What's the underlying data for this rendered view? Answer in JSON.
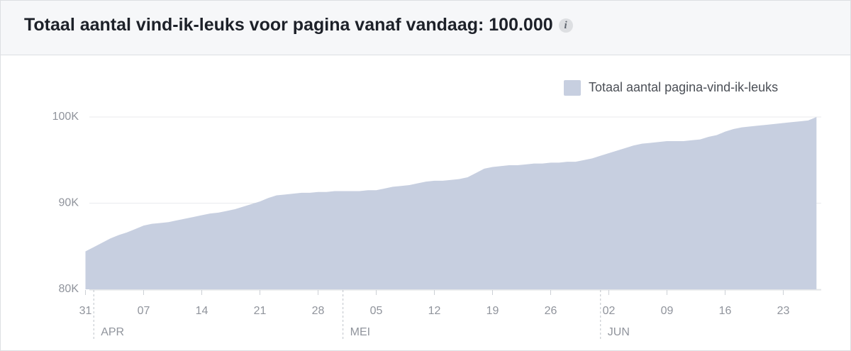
{
  "header": {
    "title": "Totaal aantal vind-ik-leuks voor pagina vanaf vandaag: 100.000",
    "info_icon": "i"
  },
  "chart_data": {
    "type": "area",
    "categories": [
      "31",
      null,
      null,
      null,
      null,
      null,
      null,
      "07",
      null,
      null,
      null,
      null,
      null,
      null,
      "14",
      null,
      null,
      null,
      null,
      null,
      null,
      "21",
      null,
      null,
      null,
      null,
      null,
      null,
      "28",
      null,
      null,
      null,
      null,
      null,
      null,
      "05",
      null,
      null,
      null,
      null,
      null,
      null,
      "12",
      null,
      null,
      null,
      null,
      null,
      null,
      "19",
      null,
      null,
      null,
      null,
      null,
      null,
      "26",
      null,
      null,
      null,
      null,
      null,
      null,
      "02",
      null,
      null,
      null,
      null,
      null,
      null,
      "09",
      null,
      null,
      null,
      null,
      null,
      null,
      "16",
      null,
      null,
      null,
      null,
      null,
      null,
      "23",
      null,
      null,
      null,
      null
    ],
    "month_labels": [
      null,
      "APR",
      null,
      null,
      null,
      null,
      null,
      null,
      null,
      null,
      null,
      null,
      null,
      null,
      null,
      null,
      null,
      null,
      null,
      null,
      null,
      null,
      null,
      null,
      null,
      null,
      null,
      null,
      null,
      null,
      null,
      "MEI",
      null,
      null,
      null,
      null,
      null,
      null,
      null,
      null,
      null,
      null,
      null,
      null,
      null,
      null,
      null,
      null,
      null,
      null,
      null,
      null,
      null,
      null,
      null,
      null,
      null,
      null,
      null,
      null,
      null,
      null,
      "JUN",
      null,
      null,
      null,
      null,
      null,
      null,
      null,
      null,
      null,
      null,
      null,
      null,
      null,
      null,
      null,
      null,
      null,
      null,
      null,
      null,
      null,
      null,
      null,
      null,
      null,
      null
    ],
    "series": [
      {
        "name": "Totaal aantal pagina-vind-ik-leuks",
        "color": "#c7cfe0",
        "values": [
          84400,
          84900,
          85400,
          85900,
          86300,
          86600,
          87000,
          87400,
          87600,
          87700,
          87800,
          88000,
          88200,
          88400,
          88600,
          88800,
          88900,
          89100,
          89300,
          89600,
          89900,
          90200,
          90600,
          90900,
          91000,
          91100,
          91200,
          91200,
          91300,
          91300,
          91400,
          91400,
          91400,
          91400,
          91500,
          91500,
          91700,
          91900,
          92000,
          92100,
          92300,
          92500,
          92600,
          92600,
          92700,
          92800,
          93000,
          93500,
          94000,
          94200,
          94300,
          94400,
          94400,
          94500,
          94600,
          94600,
          94700,
          94700,
          94800,
          94800,
          95000,
          95200,
          95500,
          95800,
          96100,
          96400,
          96700,
          96900,
          97000,
          97100,
          97200,
          97200,
          97200,
          97300,
          97400,
          97700,
          97900,
          98300,
          98600,
          98800,
          98900,
          99000,
          99100,
          99200,
          99300,
          99400,
          99500,
          99600,
          100000
        ]
      }
    ],
    "ylim": [
      80000,
      100000
    ],
    "yticks": [
      {
        "value": 80000,
        "label": "80K"
      },
      {
        "value": 90000,
        "label": "90K"
      },
      {
        "value": 100000,
        "label": "100K"
      }
    ],
    "grid": true,
    "legend": "top-right"
  }
}
